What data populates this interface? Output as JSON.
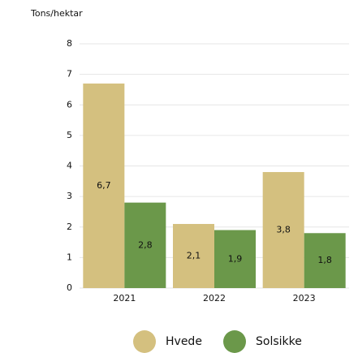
{
  "chart_data": {
    "type": "bar",
    "y_label": "Tons/hektar",
    "categories": [
      "2021",
      "2022",
      "2023"
    ],
    "series": [
      {
        "name": "Hvede",
        "color": "#d4c07f",
        "values": [
          6.7,
          2.1,
          3.8
        ],
        "value_labels": [
          "6,7",
          "2,1",
          "3,8"
        ]
      },
      {
        "name": "Solsikke",
        "color": "#6b984a",
        "values": [
          2.8,
          1.9,
          1.8
        ],
        "value_labels": [
          "2,8",
          "1,9",
          "1,8"
        ]
      }
    ],
    "ylim": [
      0,
      8
    ],
    "yticks": [
      0,
      1,
      2,
      3,
      4,
      5,
      6,
      7,
      8
    ],
    "grid": true,
    "legend": "bottom"
  }
}
